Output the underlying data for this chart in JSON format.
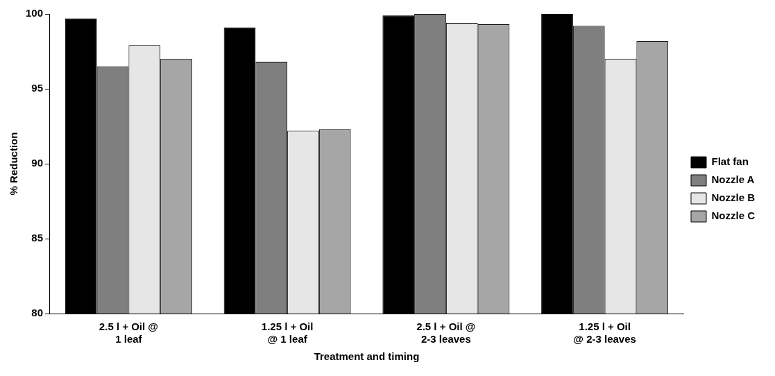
{
  "chart_data": {
    "type": "bar",
    "xlabel": "Treatment and timing",
    "ylabel": "% Reduction",
    "categories": [
      "2.5 l + Oil @ 1 leaf",
      "1.25 l + Oil @ 1 leaf",
      "2.5 l + Oil @ 2-3 leaves",
      "1.25 l + Oil @ 2-3 leaves"
    ],
    "series": [
      {
        "name": "Flat fan",
        "color": "#000000",
        "values": [
          99.7,
          99.1,
          99.9,
          100
        ]
      },
      {
        "name": "Nozzle A",
        "color": "#7f7f7f",
        "values": [
          96.5,
          96.8,
          100,
          99.2
        ]
      },
      {
        "name": "Nozzle B",
        "color": "#e6e6e6",
        "values": [
          97.9,
          92.2,
          99.4,
          97.0
        ]
      },
      {
        "name": "Nozzle C",
        "color": "#a6a6a6",
        "values": [
          97.0,
          92.3,
          99.3,
          98.2
        ]
      }
    ],
    "ylim": [
      80,
      100
    ],
    "yticks": [
      80,
      85,
      90,
      95,
      100
    ],
    "grid": false,
    "legend": "right"
  }
}
